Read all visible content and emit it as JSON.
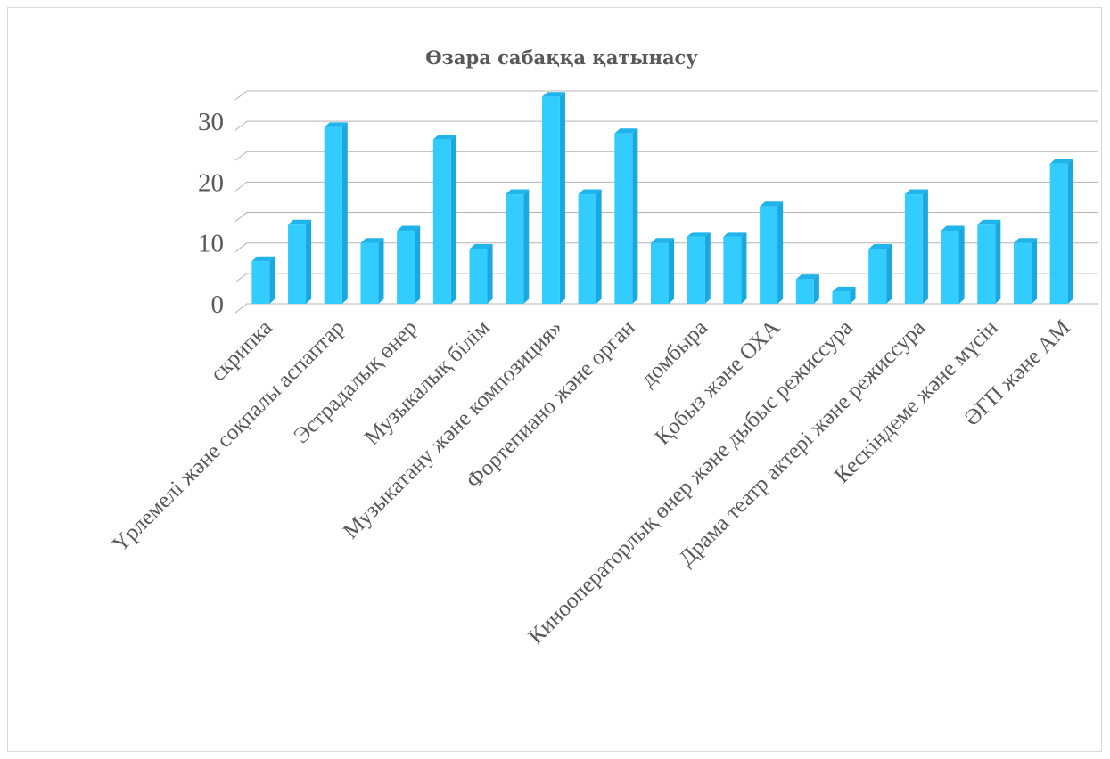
{
  "chart_data": {
    "type": "bar",
    "title": "Өзара сабаққа қатынасу",
    "xlabel": "",
    "ylabel": "",
    "categories": [
      "скрипка",
      "",
      "Үрлемелі және соқпалы аспаптар",
      "",
      "Эстрадалық  өнер",
      "",
      "Музыкалық білім",
      "",
      "Музыкатану және композиция»",
      "",
      "Фортепиано және орган",
      "",
      "домбыра",
      "",
      "Қобыз және ОХА",
      "",
      "Кинооператорлық өнер және дыбыс режиссура",
      "",
      "Драма театр актері және режиссура",
      "",
      "Кескіндеме және мүсін",
      "",
      "ӘГП және АМ"
    ],
    "values": [
      7,
      13,
      29,
      10,
      12,
      27,
      9,
      18,
      34,
      18,
      28,
      10,
      11,
      11,
      16,
      4,
      2,
      9,
      18,
      12,
      13,
      10,
      23
    ],
    "ylim": [
      0,
      35
    ],
    "yticks": [
      0,
      10,
      20,
      30
    ],
    "grid": true,
    "bar_color": "#33ccff",
    "bar_side_color": "#1aa8e0",
    "bar_top_color": "#1fb4ec"
  }
}
